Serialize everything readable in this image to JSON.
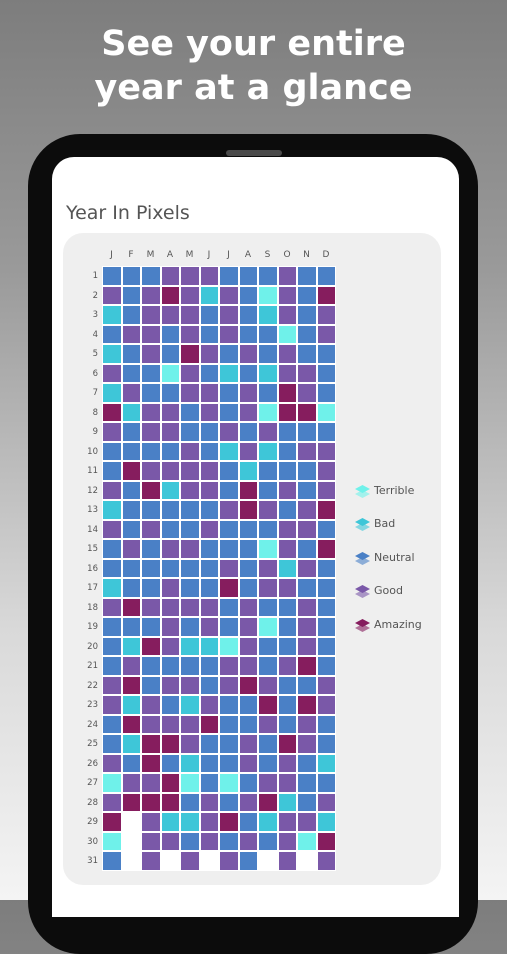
{
  "headline": {
    "line1": "See your entire",
    "line2": "year at a glance"
  },
  "app": {
    "title": "Year In Pixels"
  },
  "months": [
    "J",
    "F",
    "M",
    "A",
    "M",
    "J",
    "J",
    "A",
    "S",
    "O",
    "N",
    "D"
  ],
  "days": [
    "1",
    "2",
    "3",
    "4",
    "5",
    "6",
    "7",
    "8",
    "9",
    "10",
    "11",
    "12",
    "13",
    "14",
    "15",
    "16",
    "17",
    "18",
    "19",
    "20",
    "21",
    "22",
    "23",
    "24",
    "25",
    "26",
    "27",
    "28",
    "29",
    "30",
    "31"
  ],
  "colors": {
    "terrible": "#6ff1ea",
    "bad": "#3ec6d8",
    "neutral": "#4a80c6",
    "good": "#7a58a8",
    "amazing": "#861d5e",
    "empty": "#ffffff"
  },
  "legend": [
    {
      "label": "Terrible",
      "color": "#6ff1ea"
    },
    {
      "label": "Bad",
      "color": "#3ec6d8"
    },
    {
      "label": "Neutral",
      "color": "#4a80c6"
    },
    {
      "label": "Good",
      "color": "#7a58a8"
    },
    {
      "label": "Amazing",
      "color": "#861d5e"
    }
  ],
  "pixels": [
    "NNNGGGNNNGNN",
    "GNGAGBGNTGNA",
    "BNGGGNGNBGNG",
    "NGGNGNGNNTNG",
    "BNGNAGNGNGNN",
    "GNNTGNBNBGGN",
    "BGNNGGNGNAGN",
    "ABGGNGNGTAAT",
    "GNGGNNGNGNNN",
    "NNNNGNBGBNGG",
    "NAGGGGNBNNNG",
    "GNABGGNANGNG",
    "BNNNNNGAGNGA",
    "GNGNNGNNNGGN",
    "NGNGGNNNTGNA",
    "NNNNNNGNGBGN",
    "BNNGNNANGGNN",
    "GAGGGGNGNNGN",
    "NNNGNGNGTNGN",
    "NBAGBBTGNNGN",
    "NGNNNNGGNGAN",
    "GANGGNGAGNNG",
    "GBGNBGNNANAG",
    "NAGGGANNGNGN",
    "NBAAGNNGNAGN",
    "GNANBNNGNGNB",
    "TGGATNTNGGNN",
    "GAAANGNGABNG",
    "AEGBBGANBGGB",
    "TEGGNGNGNGTA",
    "NEGEGEGNEGEG"
  ]
}
